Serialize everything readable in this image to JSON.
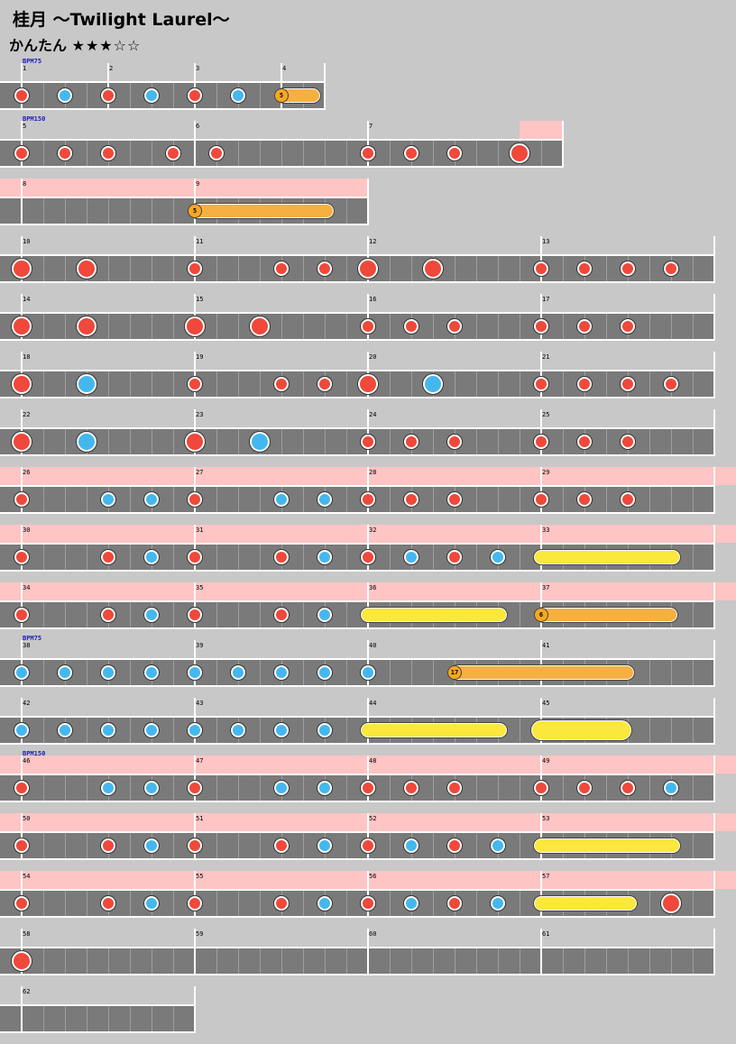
{
  "song": {
    "title": "桂月 ～Twilight Laurel～",
    "difficulty_label": "かんたん",
    "stars": "★★★☆☆"
  },
  "colors": {
    "don": "#f0483a",
    "ka": "#44b8ee",
    "gogo": "#ffc4c4",
    "roll": "#fbe83c",
    "balloon": "#f6b042"
  },
  "rows": [
    {
      "measures": [
        1,
        2,
        3,
        4
      ],
      "beats": [
        4,
        4,
        4,
        2
      ],
      "gogo": [],
      "bpm": [
        {
          "m": 0,
          "t": "BPM75"
        }
      ],
      "notes": [
        {
          "m": 0,
          "b": 0,
          "t": "d"
        },
        {
          "m": 0,
          "b": 2,
          "t": "k"
        },
        {
          "m": 1,
          "b": 0,
          "t": "d"
        },
        {
          "m": 1,
          "b": 2,
          "t": "k"
        },
        {
          "m": 2,
          "b": 0,
          "t": "d"
        },
        {
          "m": 2,
          "b": 2,
          "t": "k"
        }
      ],
      "rolls": [
        {
          "ms": 3,
          "bs": 0,
          "me": 3,
          "be": 1.6,
          "type": "balloon",
          "count": "5"
        }
      ]
    },
    {
      "measures": [
        5,
        6,
        7
      ],
      "beats": [
        8,
        8,
        9
      ],
      "gogo": [
        {
          "ms": 2,
          "bs": 7,
          "me": 2,
          "be": 9
        }
      ],
      "bpm": [
        {
          "m": 0,
          "t": "BPM150"
        }
      ],
      "notes": [
        {
          "m": 0,
          "b": 0,
          "t": "d"
        },
        {
          "m": 0,
          "b": 2,
          "t": "d"
        },
        {
          "m": 0,
          "b": 4,
          "t": "d"
        },
        {
          "m": 0,
          "b": 7,
          "t": "d"
        },
        {
          "m": 1,
          "b": 1,
          "t": "d"
        },
        {
          "m": 2,
          "b": 0,
          "t": "d"
        },
        {
          "m": 2,
          "b": 2,
          "t": "d"
        },
        {
          "m": 2,
          "b": 4,
          "t": "d"
        },
        {
          "m": 2,
          "b": 7,
          "t": "D"
        }
      ],
      "rolls": []
    },
    {
      "measures": [
        8,
        9
      ],
      "beats": [
        8,
        8
      ],
      "gogo": [
        {
          "ms": 0,
          "bs": 0,
          "me": 1,
          "be": 8
        }
      ],
      "bpm": [],
      "notes": [],
      "rolls": [
        {
          "ms": 1,
          "bs": 0,
          "me": 1,
          "be": 6.2,
          "type": "balloon",
          "count": "5"
        }
      ]
    },
    {
      "measures": [
        10,
        11,
        12,
        13
      ],
      "beats": [
        8,
        8,
        8,
        8
      ],
      "gogo": [],
      "bpm": [],
      "notes": [
        {
          "m": 0,
          "b": 0,
          "t": "D"
        },
        {
          "m": 0,
          "b": 3,
          "t": "D"
        },
        {
          "m": 1,
          "b": 0,
          "t": "d"
        },
        {
          "m": 1,
          "b": 4,
          "t": "d"
        },
        {
          "m": 1,
          "b": 6,
          "t": "d"
        },
        {
          "m": 2,
          "b": 0,
          "t": "D"
        },
        {
          "m": 2,
          "b": 3,
          "t": "D"
        },
        {
          "m": 3,
          "b": 0,
          "t": "d"
        },
        {
          "m": 3,
          "b": 2,
          "t": "d"
        },
        {
          "m": 3,
          "b": 4,
          "t": "d"
        },
        {
          "m": 3,
          "b": 6,
          "t": "d"
        }
      ],
      "rolls": []
    },
    {
      "measures": [
        14,
        15,
        16,
        17
      ],
      "beats": [
        8,
        8,
        8,
        8
      ],
      "gogo": [],
      "bpm": [],
      "notes": [
        {
          "m": 0,
          "b": 0,
          "t": "D"
        },
        {
          "m": 0,
          "b": 3,
          "t": "D"
        },
        {
          "m": 1,
          "b": 0,
          "t": "D"
        },
        {
          "m": 1,
          "b": 3,
          "t": "D"
        },
        {
          "m": 2,
          "b": 0,
          "t": "d"
        },
        {
          "m": 2,
          "b": 2,
          "t": "d"
        },
        {
          "m": 2,
          "b": 4,
          "t": "d"
        },
        {
          "m": 3,
          "b": 0,
          "t": "d"
        },
        {
          "m": 3,
          "b": 2,
          "t": "d"
        },
        {
          "m": 3,
          "b": 4,
          "t": "d"
        }
      ],
      "rolls": []
    },
    {
      "measures": [
        18,
        19,
        20,
        21
      ],
      "beats": [
        8,
        8,
        8,
        8
      ],
      "gogo": [],
      "bpm": [],
      "notes": [
        {
          "m": 0,
          "b": 0,
          "t": "D"
        },
        {
          "m": 0,
          "b": 3,
          "t": "K"
        },
        {
          "m": 1,
          "b": 0,
          "t": "d"
        },
        {
          "m": 1,
          "b": 4,
          "t": "d"
        },
        {
          "m": 1,
          "b": 6,
          "t": "d"
        },
        {
          "m": 2,
          "b": 0,
          "t": "D"
        },
        {
          "m": 2,
          "b": 3,
          "t": "K"
        },
        {
          "m": 3,
          "b": 0,
          "t": "d"
        },
        {
          "m": 3,
          "b": 2,
          "t": "d"
        },
        {
          "m": 3,
          "b": 4,
          "t": "d"
        },
        {
          "m": 3,
          "b": 6,
          "t": "d"
        }
      ],
      "rolls": []
    },
    {
      "measures": [
        22,
        23,
        24,
        25
      ],
      "beats": [
        8,
        8,
        8,
        8
      ],
      "gogo": [],
      "bpm": [],
      "notes": [
        {
          "m": 0,
          "b": 0,
          "t": "D"
        },
        {
          "m": 0,
          "b": 3,
          "t": "K"
        },
        {
          "m": 1,
          "b": 0,
          "t": "D"
        },
        {
          "m": 1,
          "b": 3,
          "t": "K"
        },
        {
          "m": 2,
          "b": 0,
          "t": "d"
        },
        {
          "m": 2,
          "b": 2,
          "t": "d"
        },
        {
          "m": 2,
          "b": 4,
          "t": "d"
        },
        {
          "m": 3,
          "b": 0,
          "t": "d"
        },
        {
          "m": 3,
          "b": 2,
          "t": "d"
        },
        {
          "m": 3,
          "b": 4,
          "t": "d"
        }
      ],
      "rolls": []
    },
    {
      "measures": [
        26,
        27,
        28,
        29
      ],
      "beats": [
        8,
        8,
        8,
        8
      ],
      "gogo": [
        {
          "ms": 0,
          "bs": 0,
          "me": 3,
          "be": 9
        }
      ],
      "bpm": [],
      "notes": [
        {
          "m": 0,
          "b": 0,
          "t": "d"
        },
        {
          "m": 0,
          "b": 4,
          "t": "k"
        },
        {
          "m": 0,
          "b": 6,
          "t": "k"
        },
        {
          "m": 1,
          "b": 0,
          "t": "d"
        },
        {
          "m": 1,
          "b": 4,
          "t": "k"
        },
        {
          "m": 1,
          "b": 6,
          "t": "k"
        },
        {
          "m": 2,
          "b": 0,
          "t": "d"
        },
        {
          "m": 2,
          "b": 2,
          "t": "d"
        },
        {
          "m": 2,
          "b": 4,
          "t": "d"
        },
        {
          "m": 3,
          "b": 0,
          "t": "d"
        },
        {
          "m": 3,
          "b": 2,
          "t": "d"
        },
        {
          "m": 3,
          "b": 4,
          "t": "d"
        }
      ],
      "rolls": []
    },
    {
      "measures": [
        30,
        31,
        32,
        33
      ],
      "beats": [
        8,
        8,
        8,
        8
      ],
      "gogo": [
        {
          "ms": 0,
          "bs": 0,
          "me": 3,
          "be": 9
        }
      ],
      "bpm": [],
      "notes": [
        {
          "m": 0,
          "b": 0,
          "t": "d"
        },
        {
          "m": 0,
          "b": 4,
          "t": "d"
        },
        {
          "m": 0,
          "b": 6,
          "t": "k"
        },
        {
          "m": 1,
          "b": 0,
          "t": "d"
        },
        {
          "m": 1,
          "b": 4,
          "t": "d"
        },
        {
          "m": 1,
          "b": 6,
          "t": "k"
        },
        {
          "m": 2,
          "b": 0,
          "t": "d"
        },
        {
          "m": 2,
          "b": 2,
          "t": "k"
        },
        {
          "m": 2,
          "b": 4,
          "t": "d"
        },
        {
          "m": 2,
          "b": 6,
          "t": "k"
        }
      ],
      "rolls": [
        {
          "ms": 3,
          "bs": 0,
          "me": 3,
          "be": 6.1,
          "type": "yellow"
        }
      ]
    },
    {
      "measures": [
        34,
        35,
        36,
        37
      ],
      "beats": [
        8,
        8,
        8,
        8
      ],
      "gogo": [
        {
          "ms": 0,
          "bs": 0,
          "me": 3,
          "be": 9
        }
      ],
      "bpm": [],
      "notes": [
        {
          "m": 0,
          "b": 0,
          "t": "d"
        },
        {
          "m": 0,
          "b": 4,
          "t": "d"
        },
        {
          "m": 0,
          "b": 6,
          "t": "k"
        },
        {
          "m": 1,
          "b": 0,
          "t": "d"
        },
        {
          "m": 1,
          "b": 4,
          "t": "d"
        },
        {
          "m": 1,
          "b": 6,
          "t": "k"
        }
      ],
      "rolls": [
        {
          "ms": 2,
          "bs": 0,
          "me": 2,
          "be": 6.1,
          "type": "yellow"
        },
        {
          "ms": 3,
          "bs": 0,
          "me": 3,
          "be": 6.1,
          "type": "balloon",
          "count": "6"
        }
      ]
    },
    {
      "measures": [
        38,
        39,
        40,
        41
      ],
      "beats": [
        8,
        8,
        8,
        8
      ],
      "gogo": [],
      "bpm": [
        {
          "m": 0,
          "t": "BPM75"
        }
      ],
      "notes": [
        {
          "m": 0,
          "b": 0,
          "t": "k"
        },
        {
          "m": 0,
          "b": 2,
          "t": "k"
        },
        {
          "m": 0,
          "b": 4,
          "t": "k"
        },
        {
          "m": 0,
          "b": 6,
          "t": "k"
        },
        {
          "m": 1,
          "b": 0,
          "t": "k"
        },
        {
          "m": 1,
          "b": 2,
          "t": "k"
        },
        {
          "m": 1,
          "b": 4,
          "t": "k"
        },
        {
          "m": 1,
          "b": 6,
          "t": "k"
        },
        {
          "m": 2,
          "b": 0,
          "t": "k"
        }
      ],
      "rolls": [
        {
          "ms": 2,
          "bs": 4,
          "me": 3,
          "be": 4.1,
          "type": "balloon",
          "count": "17"
        }
      ]
    },
    {
      "measures": [
        42,
        43,
        44,
        45
      ],
      "beats": [
        8,
        8,
        8,
        8
      ],
      "gogo": [],
      "bpm": [],
      "notes": [
        {
          "m": 0,
          "b": 0,
          "t": "k"
        },
        {
          "m": 0,
          "b": 2,
          "t": "k"
        },
        {
          "m": 0,
          "b": 4,
          "t": "k"
        },
        {
          "m": 0,
          "b": 6,
          "t": "k"
        },
        {
          "m": 1,
          "b": 0,
          "t": "k"
        },
        {
          "m": 1,
          "b": 2,
          "t": "k"
        },
        {
          "m": 1,
          "b": 4,
          "t": "k"
        },
        {
          "m": 1,
          "b": 6,
          "t": "k"
        }
      ],
      "rolls": [
        {
          "ms": 2,
          "bs": 0,
          "me": 2,
          "be": 6.1,
          "type": "yellow"
        },
        {
          "ms": 3,
          "bs": 0,
          "me": 3,
          "be": 3.7,
          "type": "yellowbig"
        }
      ]
    },
    {
      "measures": [
        46,
        47,
        48,
        49
      ],
      "beats": [
        8,
        8,
        8,
        8
      ],
      "gogo": [
        {
          "ms": 0,
          "bs": 0,
          "me": 3,
          "be": 9
        }
      ],
      "bpm": [
        {
          "m": 0,
          "t": "BPM150"
        }
      ],
      "notes": [
        {
          "m": 0,
          "b": 0,
          "t": "d"
        },
        {
          "m": 0,
          "b": 4,
          "t": "k"
        },
        {
          "m": 0,
          "b": 6,
          "t": "k"
        },
        {
          "m": 1,
          "b": 0,
          "t": "d"
        },
        {
          "m": 1,
          "b": 4,
          "t": "k"
        },
        {
          "m": 1,
          "b": 6,
          "t": "k"
        },
        {
          "m": 2,
          "b": 0,
          "t": "d"
        },
        {
          "m": 2,
          "b": 2,
          "t": "d"
        },
        {
          "m": 2,
          "b": 4,
          "t": "d"
        },
        {
          "m": 3,
          "b": 0,
          "t": "d"
        },
        {
          "m": 3,
          "b": 2,
          "t": "d"
        },
        {
          "m": 3,
          "b": 4,
          "t": "d"
        },
        {
          "m": 3,
          "b": 6,
          "t": "k"
        }
      ],
      "rolls": []
    },
    {
      "measures": [
        50,
        51,
        52,
        53
      ],
      "beats": [
        8,
        8,
        8,
        8
      ],
      "gogo": [
        {
          "ms": 0,
          "bs": 0,
          "me": 3,
          "be": 9
        }
      ],
      "bpm": [],
      "notes": [
        {
          "m": 0,
          "b": 0,
          "t": "d"
        },
        {
          "m": 0,
          "b": 4,
          "t": "d"
        },
        {
          "m": 0,
          "b": 6,
          "t": "k"
        },
        {
          "m": 1,
          "b": 0,
          "t": "d"
        },
        {
          "m": 1,
          "b": 4,
          "t": "d"
        },
        {
          "m": 1,
          "b": 6,
          "t": "k"
        },
        {
          "m": 2,
          "b": 0,
          "t": "d"
        },
        {
          "m": 2,
          "b": 2,
          "t": "k"
        },
        {
          "m": 2,
          "b": 4,
          "t": "d"
        },
        {
          "m": 2,
          "b": 6,
          "t": "k"
        }
      ],
      "rolls": [
        {
          "ms": 3,
          "bs": 0,
          "me": 3,
          "be": 6.1,
          "type": "yellow"
        }
      ]
    },
    {
      "measures": [
        54,
        55,
        56,
        57
      ],
      "beats": [
        8,
        8,
        8,
        8
      ],
      "gogo": [
        {
          "ms": 0,
          "bs": 0,
          "me": 3,
          "be": 9
        }
      ],
      "bpm": [],
      "notes": [
        {
          "m": 0,
          "b": 0,
          "t": "d"
        },
        {
          "m": 0,
          "b": 4,
          "t": "d"
        },
        {
          "m": 0,
          "b": 6,
          "t": "k"
        },
        {
          "m": 1,
          "b": 0,
          "t": "d"
        },
        {
          "m": 1,
          "b": 4,
          "t": "d"
        },
        {
          "m": 1,
          "b": 6,
          "t": "k"
        },
        {
          "m": 2,
          "b": 0,
          "t": "d"
        },
        {
          "m": 2,
          "b": 2,
          "t": "k"
        },
        {
          "m": 2,
          "b": 4,
          "t": "d"
        },
        {
          "m": 2,
          "b": 6,
          "t": "k"
        },
        {
          "m": 3,
          "b": 6,
          "t": "D"
        }
      ],
      "rolls": [
        {
          "ms": 3,
          "bs": 0,
          "me": 3,
          "be": 4.1,
          "type": "yellow"
        }
      ]
    },
    {
      "measures": [
        58,
        59,
        60,
        61
      ],
      "beats": [
        8,
        8,
        8,
        8
      ],
      "gogo": [],
      "bpm": [],
      "notes": [
        {
          "m": 0,
          "b": 0,
          "t": "D"
        }
      ],
      "rolls": []
    },
    {
      "measures": [
        62
      ],
      "beats": [
        8
      ],
      "gogo": [],
      "bpm": [],
      "notes": [],
      "rolls": [],
      "partial": true
    }
  ]
}
